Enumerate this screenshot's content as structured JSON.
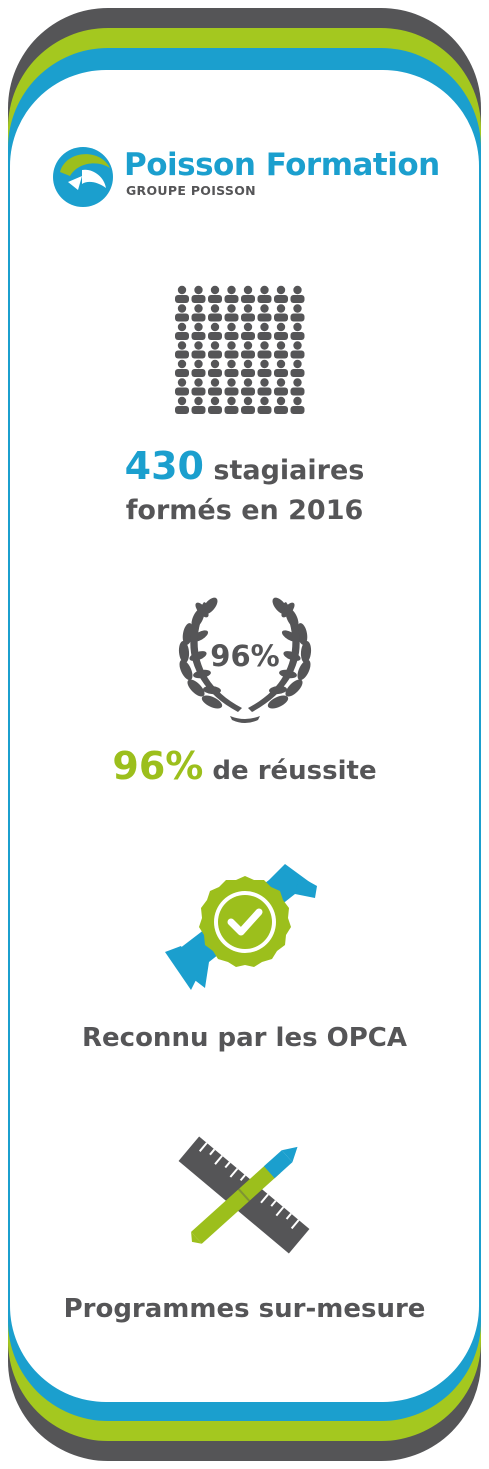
{
  "brand": {
    "name": "Poisson Formation",
    "group": "GROUPE POISSON",
    "colors": {
      "blue": "#1b9fce",
      "green": "#9cbf1c",
      "gray": "#555557"
    }
  },
  "stats": [
    {
      "icon": "audience-icon",
      "highlight": "430",
      "line1": "stagiaires",
      "line2": "formés en 2016"
    },
    {
      "icon": "laurel-icon",
      "badge": "96%",
      "highlight": "96%",
      "text": "de réussite"
    },
    {
      "icon": "certified-badge-icon",
      "text": "Reconnu par les OPCA"
    },
    {
      "icon": "ruler-pencil-icon",
      "text": "Programmes sur-mesure"
    }
  ]
}
